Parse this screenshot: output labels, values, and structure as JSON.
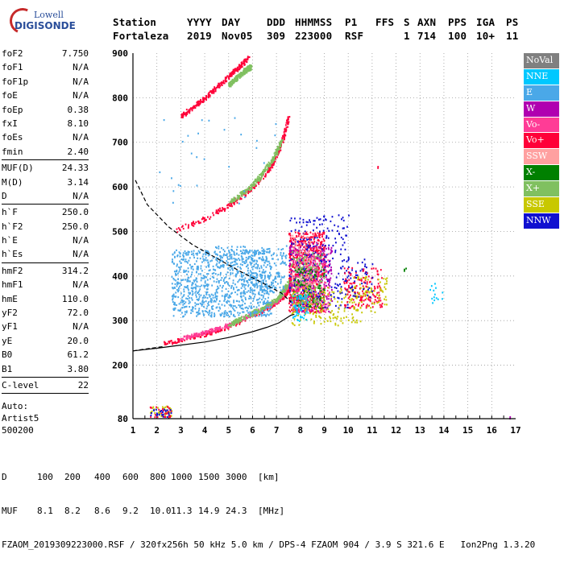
{
  "logo": {
    "line1": "Lowell",
    "line2": "DIGISONDE"
  },
  "header": {
    "row1": [
      "Station",
      "YYYY",
      "DAY",
      "DDD",
      "HHMMSS",
      "P1",
      "FFS",
      "S",
      "AXN",
      "PPS",
      "IGA",
      "PS"
    ],
    "row2": [
      "Fortaleza",
      "2019",
      "Nov05",
      "309",
      "223000",
      "RSF",
      "1",
      "714",
      "100",
      "10+",
      "11"
    ]
  },
  "params": [
    [
      {
        "name": "foF2",
        "value": "7.750"
      },
      {
        "name": "foF1",
        "value": "N/A"
      },
      {
        "name": "foF1p",
        "value": "N/A"
      },
      {
        "name": "foE",
        "value": "N/A"
      },
      {
        "name": "foEp",
        "value": "0.38"
      },
      {
        "name": "fxI",
        "value": "8.10"
      },
      {
        "name": "foEs",
        "value": "N/A"
      },
      {
        "name": "fmin",
        "value": "2.40"
      }
    ],
    [
      {
        "name": "MUF(D)",
        "value": "24.33"
      },
      {
        "name": "M(D)",
        "value": "3.14"
      },
      {
        "name": "D",
        "value": "N/A"
      }
    ],
    [
      {
        "name": "h`F",
        "value": "250.0"
      },
      {
        "name": "h`F2",
        "value": "250.0"
      },
      {
        "name": "h`E",
        "value": "N/A"
      },
      {
        "name": "h`Es",
        "value": "N/A"
      }
    ],
    [
      {
        "name": "hmF2",
        "value": "314.2"
      },
      {
        "name": "hmF1",
        "value": "N/A"
      },
      {
        "name": "hmE",
        "value": "110.0"
      },
      {
        "name": "yF2",
        "value": "72.0"
      },
      {
        "name": "yF1",
        "value": "N/A"
      },
      {
        "name": "yE",
        "value": "20.0"
      },
      {
        "name": "B0",
        "value": "61.2"
      },
      {
        "name": "B1",
        "value": "3.80"
      }
    ],
    [
      {
        "name": "C-level",
        "value": "22"
      }
    ]
  ],
  "auto": [
    "Auto:",
    "Artist5",
    "500200"
  ],
  "legend": [
    {
      "label": "NoVal",
      "color": "#808080"
    },
    {
      "label": "NNE",
      "color": "#00c8ff"
    },
    {
      "label": "E",
      "color": "#4aa8e8"
    },
    {
      "label": "W",
      "color": "#b000b0"
    },
    {
      "label": "Vo-",
      "color": "#ff3c96"
    },
    {
      "label": "Vo+",
      "color": "#ff0038"
    },
    {
      "label": "SSW",
      "color": "#ffa0a0"
    },
    {
      "label": "X-",
      "color": "#008000"
    },
    {
      "label": "X+",
      "color": "#80c060"
    },
    {
      "label": "SSE",
      "color": "#c8c800"
    },
    {
      "label": "NNW",
      "color": "#1010d0"
    }
  ],
  "bottom": {
    "d_label": "D",
    "d_values": [
      "100",
      "200",
      "400",
      "600",
      "800",
      "1000",
      "1500",
      "3000"
    ],
    "d_unit": "[km]",
    "muf_label": "MUF",
    "muf_values": [
      "8.1",
      "8.2",
      "8.6",
      "9.2",
      "10.0",
      "11.3",
      "14.9",
      "24.3"
    ],
    "muf_unit": "[MHz]",
    "footer": "FZAOM_2019309223000.RSF / 320fx256h 50 kHz 5.0 km / DPS-4 FZAOM 904 / 3.9 S 321.6 E   Ion2Png 1.3.20"
  },
  "chart_data": {
    "type": "scatter",
    "xlim": [
      1,
      17
    ],
    "ylim": [
      80,
      900
    ],
    "xticks": [
      1,
      2,
      3,
      4,
      5,
      6,
      7,
      8,
      9,
      10,
      11,
      12,
      13,
      14,
      15,
      16,
      17
    ],
    "yticks": [
      80,
      200,
      300,
      400,
      500,
      600,
      700,
      800,
      900
    ],
    "grid": "dotted",
    "clusters": [
      {
        "color": "#ff0038",
        "kind": "line",
        "points": [
          [
            2.3,
            250
          ],
          [
            3,
            258
          ],
          [
            4,
            270
          ],
          [
            5,
            288
          ],
          [
            6,
            312
          ],
          [
            6.8,
            335
          ],
          [
            7.3,
            355
          ],
          [
            7.6,
            380
          ]
        ],
        "spread": [
          0.05,
          4
        ]
      },
      {
        "color": "#ff3c96",
        "kind": "line",
        "points": [
          [
            3,
            262
          ],
          [
            4,
            275
          ],
          [
            5,
            292
          ],
          [
            6,
            316
          ],
          [
            7,
            345
          ],
          [
            7.6,
            385
          ]
        ],
        "spread": [
          0.05,
          4
        ]
      },
      {
        "color": "#80c060",
        "kind": "line",
        "points": [
          [
            5,
            292
          ],
          [
            6,
            318
          ],
          [
            7,
            348
          ],
          [
            7.6,
            395
          ]
        ],
        "spread": [
          0.05,
          5
        ]
      },
      {
        "color": "#ff0038",
        "kind": "line",
        "points": [
          [
            2.8,
            505
          ],
          [
            4,
            530
          ],
          [
            5,
            560
          ],
          [
            6,
            600
          ],
          [
            6.8,
            650
          ],
          [
            7.2,
            700
          ],
          [
            7.5,
            760
          ]
        ],
        "spread": [
          0.05,
          5
        ]
      },
      {
        "color": "#80c060",
        "kind": "line",
        "points": [
          [
            5,
            565
          ],
          [
            6,
            605
          ],
          [
            6.8,
            660
          ],
          [
            7.2,
            705
          ]
        ],
        "spread": [
          0.05,
          5
        ]
      },
      {
        "color": "#ff0038",
        "kind": "line",
        "points": [
          [
            3,
            760
          ],
          [
            4,
            800
          ],
          [
            5,
            850
          ],
          [
            5.8,
            890
          ]
        ],
        "spread": [
          0.05,
          5
        ]
      },
      {
        "color": "#80c060",
        "kind": "line",
        "points": [
          [
            5,
            830
          ],
          [
            5.6,
            860
          ],
          [
            5.9,
            870
          ]
        ],
        "spread": [
          0.05,
          5
        ]
      },
      {
        "color": "#4aa8e8",
        "kind": "cloud",
        "box": [
          2.6,
          6.8,
          310,
          460
        ],
        "n": 900
      },
      {
        "color": "#4aa8e8",
        "kind": "cloud",
        "box": [
          4.4,
          7.4,
          420,
          470
        ],
        "n": 140
      },
      {
        "color": "#4aa8e8",
        "kind": "cloud",
        "box": [
          5.5,
          7.3,
          360,
          410
        ],
        "n": 120
      },
      {
        "color": "#ff0038",
        "kind": "cloud",
        "box": [
          7.5,
          9.0,
          320,
          500
        ],
        "n": 700
      },
      {
        "color": "#b000b0",
        "kind": "cloud",
        "box": [
          7.5,
          9.3,
          320,
          480
        ],
        "n": 300
      },
      {
        "color": "#ff3c96",
        "kind": "cloud",
        "box": [
          7.6,
          9.2,
          320,
          460
        ],
        "n": 260
      },
      {
        "color": "#1010d0",
        "kind": "cloud",
        "box": [
          7.5,
          10.0,
          330,
          540
        ],
        "n": 240
      },
      {
        "color": "#008000",
        "kind": "cloud",
        "box": [
          7.7,
          9.0,
          330,
          420
        ],
        "n": 120
      },
      {
        "color": "#c8c800",
        "kind": "cloud",
        "box": [
          7.6,
          10.5,
          290,
          380
        ],
        "n": 160
      },
      {
        "color": "#80c060",
        "kind": "cloud",
        "box": [
          7.6,
          9.0,
          340,
          460
        ],
        "n": 120
      },
      {
        "color": "#ffa0a0",
        "kind": "cloud",
        "box": [
          7.6,
          8.6,
          380,
          500
        ],
        "n": 80
      },
      {
        "color": "#00c8ff",
        "kind": "cloud",
        "box": [
          7.6,
          8.3,
          300,
          360
        ],
        "n": 60
      },
      {
        "color": "#ff0038",
        "kind": "cloud",
        "box": [
          9.8,
          11.4,
          330,
          420
        ],
        "n": 160
      },
      {
        "color": "#c8c800",
        "kind": "cloud",
        "box": [
          10.2,
          11.6,
          320,
          400
        ],
        "n": 80
      },
      {
        "color": "#1010d0",
        "kind": "cloud",
        "box": [
          9.6,
          11.0,
          350,
          440
        ],
        "n": 50
      },
      {
        "color": "#00c8ff",
        "kind": "cloud",
        "box": [
          13.3,
          14.2,
          340,
          385
        ],
        "n": 14
      },
      {
        "color": "#4aa8e8",
        "kind": "cloud",
        "box": [
          2.0,
          7.0,
          550,
          760
        ],
        "n": 28
      },
      {
        "color": "#c8c800",
        "kind": "cloud",
        "box": [
          1.7,
          2.6,
          85,
          110
        ],
        "n": 40
      },
      {
        "color": "#ff0038",
        "kind": "cloud",
        "box": [
          1.7,
          2.6,
          85,
          110
        ],
        "n": 30
      },
      {
        "color": "#1010d0",
        "kind": "cloud",
        "box": [
          1.7,
          2.6,
          85,
          105
        ],
        "n": 25
      },
      {
        "color": "#008000",
        "kind": "cloud",
        "box": [
          12.2,
          12.4,
          405,
          420
        ],
        "n": 3
      },
      {
        "color": "#ff0038",
        "kind": "cloud",
        "box": [
          11.1,
          11.3,
          640,
          650
        ],
        "n": 2
      },
      {
        "color": "#b000b0",
        "kind": "cloud",
        "box": [
          16.6,
          16.8,
          82,
          86
        ],
        "n": 2
      }
    ],
    "profile_solid": [
      [
        7.75,
        314
      ],
      [
        7.6,
        312
      ],
      [
        7.4,
        305
      ],
      [
        7.1,
        295
      ],
      [
        6.6,
        285
      ],
      [
        6,
        275
      ],
      [
        5,
        262
      ],
      [
        4,
        252
      ],
      [
        3,
        245
      ],
      [
        2,
        238
      ],
      [
        1,
        232
      ]
    ],
    "profile_dashed_lower": [
      [
        1,
        232
      ],
      [
        1.5,
        236
      ],
      [
        2.3,
        242
      ]
    ],
    "profile_dashed_upper": [
      [
        1.1,
        615
      ],
      [
        1.6,
        560
      ],
      [
        2.5,
        510
      ],
      [
        3.5,
        470
      ],
      [
        4.5,
        440
      ],
      [
        5.5,
        410
      ],
      [
        6.4,
        385
      ],
      [
        7.2,
        362
      ],
      [
        7.6,
        342
      ]
    ]
  }
}
